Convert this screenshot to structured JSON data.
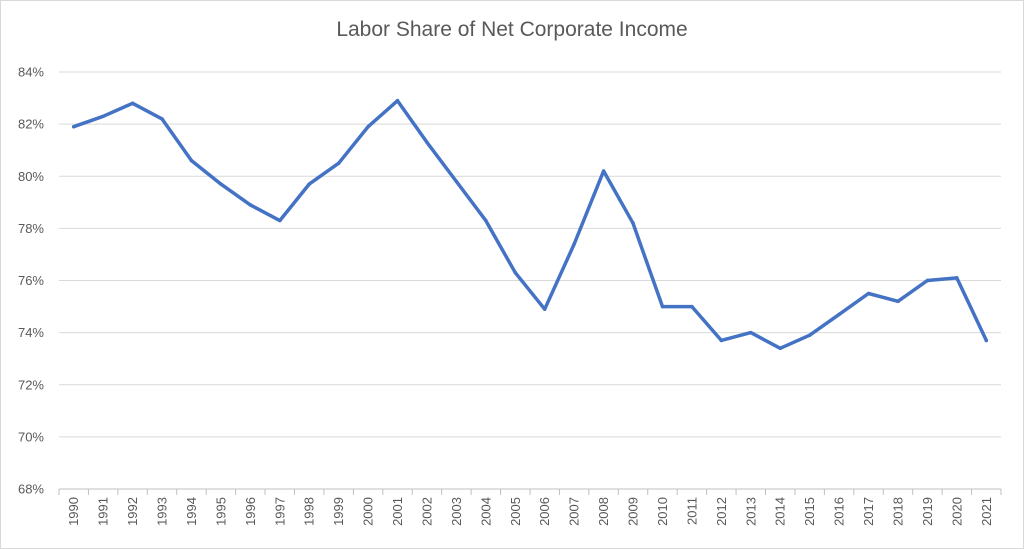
{
  "chart_data": {
    "type": "line",
    "title": "Labor Share of Net Corporate Income",
    "xlabel": "",
    "ylabel": "",
    "x": [
      "1990",
      "1991",
      "1992",
      "1993",
      "1994",
      "1995",
      "1996",
      "1997",
      "1998",
      "1999",
      "2000",
      "2001",
      "2002",
      "2003",
      "2004",
      "2005",
      "2006",
      "2007",
      "2008",
      "2009",
      "2010",
      "2011",
      "2012",
      "2013",
      "2014",
      "2015",
      "2016",
      "2017",
      "2018",
      "2019",
      "2020",
      "2021"
    ],
    "series": [
      {
        "values": [
          81.9,
          82.3,
          82.8,
          82.2,
          80.6,
          79.7,
          78.9,
          78.3,
          79.7,
          80.5,
          81.9,
          82.9,
          81.3,
          79.8,
          78.3,
          76.3,
          74.9,
          77.4,
          80.2,
          78.2,
          75.0,
          75.0,
          73.7,
          74.0,
          73.4,
          73.9,
          74.7,
          75.5,
          75.2,
          76.0,
          76.1,
          73.7
        ],
        "color": "#4472c4"
      }
    ],
    "y_ticks": [
      "68%",
      "70%",
      "72%",
      "74%",
      "76%",
      "78%",
      "80%",
      "82%",
      "84%"
    ],
    "ylim": [
      68,
      84
    ],
    "y_format": "percent",
    "grid": true,
    "legend": "none"
  }
}
